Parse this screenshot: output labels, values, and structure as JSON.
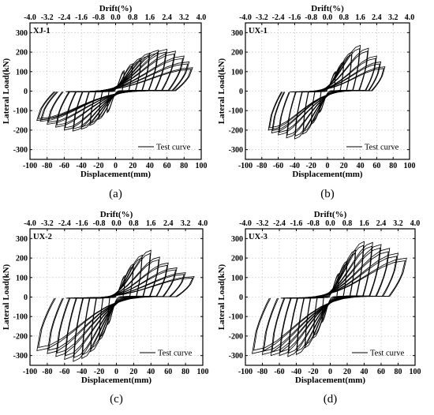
{
  "chart_data": [
    {
      "type": "line",
      "panel_label": "XJ-1",
      "caption": "(a)",
      "xlabel": "Displacement(mm)",
      "ylabel": "Lateral Load(kN)",
      "x2label": "Drift(%)",
      "xlim": [
        -100,
        100
      ],
      "ylim": [
        -350,
        350
      ],
      "xticks": [
        -100,
        -80,
        -60,
        -40,
        -20,
        0,
        20,
        40,
        60,
        80,
        100
      ],
      "yticks": [
        -300,
        -200,
        -100,
        0,
        100,
        200,
        300
      ],
      "x2ticks": [
        "-4.0",
        "-3.2",
        "-2.4",
        "-1.6",
        "-0.8",
        "0.0",
        "0.8",
        "1.6",
        "2.4",
        "3.2",
        "4.0"
      ],
      "legend": "Test curve",
      "legend_position": "bottom-right",
      "grid": true,
      "series": [
        {
          "cycles": [
            {
              "amp_pos": 10,
              "peak_pos": 105,
              "amp_neg": 10,
              "peak_neg": 110
            },
            {
              "amp_pos": 20,
              "peak_pos": 140,
              "amp_neg": 20,
              "peak_neg": 145
            },
            {
              "amp_pos": 30,
              "peak_pos": 170,
              "amp_neg": 30,
              "peak_neg": 175
            },
            {
              "amp_pos": 40,
              "peak_pos": 195,
              "amp_neg": 40,
              "peak_neg": 195
            },
            {
              "amp_pos": 50,
              "peak_pos": 210,
              "amp_neg": 50,
              "peak_neg": 205
            },
            {
              "amp_pos": 60,
              "peak_pos": 215,
              "amp_neg": 60,
              "peak_neg": 200
            },
            {
              "amp_pos": 70,
              "peak_pos": 205,
              "amp_neg": 70,
              "peak_neg": 185
            },
            {
              "amp_pos": 80,
              "peak_pos": 180,
              "amp_neg": 80,
              "peak_neg": 170
            },
            {
              "amp_pos": 86,
              "peak_pos": 150,
              "amp_neg": 88,
              "peak_neg": 155
            },
            {
              "amp_pos": 90,
              "peak_pos": 120,
              "amp_neg": 92,
              "peak_neg": 150
            }
          ]
        }
      ]
    },
    {
      "type": "line",
      "panel_label": "UX-1",
      "caption": "(b)",
      "xlabel": "Displacement(mm)",
      "ylabel": "Lateral Load(kN)",
      "x2label": "Drift(%)",
      "xlim": [
        -100,
        100
      ],
      "ylim": [
        -350,
        350
      ],
      "xticks": [
        -100,
        -80,
        -60,
        -40,
        -20,
        0,
        20,
        40,
        60,
        80,
        100
      ],
      "yticks": [
        -300,
        -200,
        -100,
        0,
        100,
        200,
        300
      ],
      "x2ticks": [
        "-4.0",
        "-3.2",
        "-2.4",
        "-1.6",
        "-0.8",
        "0.0",
        "0.8",
        "1.6",
        "2.4",
        "3.2",
        "4.0"
      ],
      "legend": "Test curve",
      "legend_position": "bottom-right",
      "grid": true,
      "series": [
        {
          "cycles": [
            {
              "amp_pos": 10,
              "peak_pos": 100,
              "amp_neg": 10,
              "peak_neg": 110
            },
            {
              "amp_pos": 20,
              "peak_pos": 150,
              "amp_neg": 20,
              "peak_neg": 170
            },
            {
              "amp_pos": 30,
              "peak_pos": 200,
              "amp_neg": 30,
              "peak_neg": 220
            },
            {
              "amp_pos": 40,
              "peak_pos": 235,
              "amp_neg": 40,
              "peak_neg": 245
            },
            {
              "amp_pos": 50,
              "peak_pos": 220,
              "amp_neg": 50,
              "peak_neg": 240
            },
            {
              "amp_pos": 60,
              "peak_pos": 180,
              "amp_neg": 60,
              "peak_neg": 225
            },
            {
              "amp_pos": 65,
              "peak_pos": 150,
              "amp_neg": 68,
              "peak_neg": 215
            },
            {
              "amp_pos": 70,
              "peak_pos": 125,
              "amp_neg": 72,
              "peak_neg": 200
            }
          ]
        }
      ]
    },
    {
      "type": "line",
      "panel_label": "UX-2",
      "caption": "(c)",
      "xlabel": "Displacement(mm)",
      "ylabel": "Lateral Load(kN)",
      "x2label": "Drift(%)",
      "xlim": [
        -100,
        100
      ],
      "ylim": [
        -350,
        350
      ],
      "xticks": [
        -100,
        -80,
        -60,
        -40,
        -20,
        0,
        20,
        40,
        60,
        80,
        100
      ],
      "yticks": [
        -300,
        -200,
        -100,
        0,
        100,
        200,
        300
      ],
      "x2ticks": [
        "-4.0",
        "-3.2",
        "-2.4",
        "-1.6",
        "-0.8",
        "0.0",
        "0.8",
        "1.6",
        "2.4",
        "3.2",
        "4.0"
      ],
      "legend": "Test curve",
      "legend_position": "bottom-right",
      "grid": true,
      "series": [
        {
          "cycles": [
            {
              "amp_pos": 10,
              "peak_pos": 110,
              "amp_neg": 10,
              "peak_neg": 140
            },
            {
              "amp_pos": 20,
              "peak_pos": 170,
              "amp_neg": 20,
              "peak_neg": 220
            },
            {
              "amp_pos": 30,
              "peak_pos": 215,
              "amp_neg": 30,
              "peak_neg": 280
            },
            {
              "amp_pos": 40,
              "peak_pos": 240,
              "amp_neg": 40,
              "peak_neg": 315
            },
            {
              "amp_pos": 50,
              "peak_pos": 205,
              "amp_neg": 50,
              "peak_neg": 330
            },
            {
              "amp_pos": 60,
              "peak_pos": 175,
              "amp_neg": 60,
              "peak_neg": 320
            },
            {
              "amp_pos": 70,
              "peak_pos": 150,
              "amp_neg": 70,
              "peak_neg": 305
            },
            {
              "amp_pos": 80,
              "peak_pos": 125,
              "amp_neg": 80,
              "peak_neg": 290
            },
            {
              "amp_pos": 90,
              "peak_pos": 105,
              "amp_neg": 92,
              "peak_neg": 275
            }
          ]
        }
      ]
    },
    {
      "type": "line",
      "panel_label": "UX-3",
      "caption": "(d)",
      "xlabel": "Displacement(mm)",
      "ylabel": "Lateral Load(kN)",
      "x2label": "Drift(%)",
      "xlim": [
        -100,
        100
      ],
      "ylim": [
        -350,
        350
      ],
      "xticks": [
        -100,
        -80,
        -60,
        -40,
        -20,
        0,
        20,
        40,
        60,
        80,
        100
      ],
      "yticks": [
        -300,
        -200,
        -100,
        0,
        100,
        200,
        300
      ],
      "x2ticks": [
        "-4.0",
        "-3.2",
        "-2.4",
        "-1.6",
        "-0.8",
        "0.0",
        "0.8",
        "1.6",
        "2.4",
        "3.2",
        "4.0"
      ],
      "legend": "Test curve",
      "legend_position": "bottom-right",
      "grid": true,
      "series": [
        {
          "cycles": [
            {
              "amp_pos": 10,
              "peak_pos": 120,
              "amp_neg": 10,
              "peak_neg": 130
            },
            {
              "amp_pos": 20,
              "peak_pos": 185,
              "amp_neg": 20,
              "peak_neg": 210
            },
            {
              "amp_pos": 30,
              "peak_pos": 240,
              "amp_neg": 30,
              "peak_neg": 260
            },
            {
              "amp_pos": 40,
              "peak_pos": 285,
              "amp_neg": 40,
              "peak_neg": 295
            },
            {
              "amp_pos": 50,
              "peak_pos": 280,
              "amp_neg": 50,
              "peak_neg": 305
            },
            {
              "amp_pos": 60,
              "peak_pos": 270,
              "amp_neg": 60,
              "peak_neg": 300
            },
            {
              "amp_pos": 70,
              "peak_pos": 250,
              "amp_neg": 70,
              "peak_neg": 300
            },
            {
              "amp_pos": 80,
              "peak_pos": 225,
              "amp_neg": 80,
              "peak_neg": 295
            },
            {
              "amp_pos": 90,
              "peak_pos": 200,
              "amp_neg": 92,
              "peak_neg": 290
            }
          ]
        }
      ]
    }
  ]
}
